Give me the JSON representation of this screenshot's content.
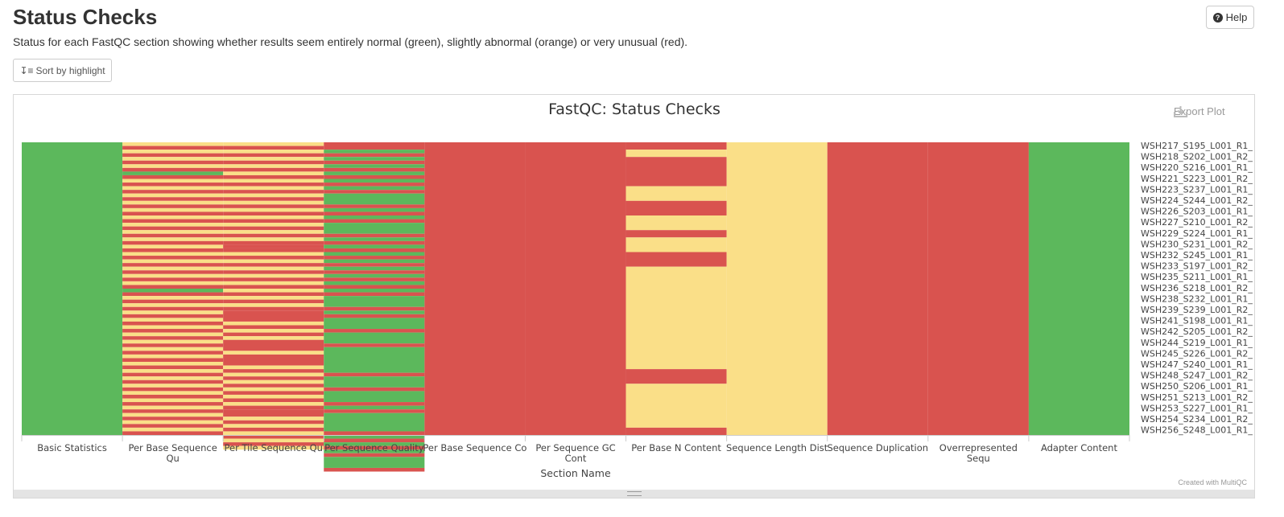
{
  "page": {
    "title": "Status Checks",
    "description": "Status for each FastQC section showing whether results seem entirely normal (green), slightly abnormal (orange) or very unusual (red).",
    "help_label": "Help",
    "help_icon": "question-circle-icon",
    "sort_label": "Sort by highlight",
    "sort_icon": "sort-amount-icon",
    "export_label": "Export Plot",
    "export_icon": "download-icon",
    "credit": "Created with MultiQC"
  },
  "chart_data": {
    "type": "heatmap",
    "title": "FastQC: Status Checks",
    "xlabel": "Section Name",
    "ylabel": "",
    "legend": "none",
    "status_colors": {
      "pass": "#5cb85c",
      "warn": "#fadf88",
      "fail": "#d9534f"
    },
    "value_scale": {
      "pass": 1,
      "warn": 0.5,
      "fail": 0.25
    },
    "x_categories": [
      [
        "Basic Statistics"
      ],
      [
        "Per Base Sequence",
        "Qu"
      ],
      [
        "Per Tile Sequence Qu"
      ],
      [
        "Per Sequence Quality"
      ],
      [
        "Per Base Sequence Co"
      ],
      [
        "Per Sequence GC",
        "Cont"
      ],
      [
        "Per Base N Content"
      ],
      [
        "Sequence Length Dist"
      ],
      [
        "Sequence Duplication"
      ],
      [
        "Overrepresented",
        "Sequ"
      ],
      [
        "Adapter Content"
      ]
    ],
    "visible_y_labels": [
      "WSH217_S195_L001_R1_",
      "WSH218_S202_L001_R2_",
      "WSH220_S216_L001_R1_",
      "WSH221_S223_L001_R2_",
      "WSH223_S237_L001_R1_",
      "WSH224_S244_L001_R2_",
      "WSH226_S203_L001_R1_",
      "WSH227_S210_L001_R2_",
      "WSH229_S224_L001_R1_",
      "WSH230_S231_L001_R2_",
      "WSH232_S245_L001_R1_",
      "WSH233_S197_L001_R2_",
      "WSH235_S211_L001_R1_",
      "WSH236_S218_L001_R2_",
      "WSH238_S232_L001_R1_",
      "WSH239_S239_L001_R2_",
      "WSH241_S198_L001_R1_",
      "WSH242_S205_L001_R2_",
      "WSH244_S219_L001_R1_",
      "WSH245_S226_L001_R2_",
      "WSH247_S240_L001_R1_",
      "WSH248_S247_L001_R2_",
      "WSH250_S206_L001_R1_",
      "WSH251_S213_L001_R2_",
      "WSH253_S227_L001_R1_",
      "WSH254_S234_L001_R2_",
      "WSH256_S248_L001_R1_"
    ],
    "sample_count": 80,
    "columns": [
      {
        "runs": [
          [
            "pass",
            80
          ]
        ]
      },
      {
        "runs": [
          [
            "warn",
            1
          ],
          [
            "fail",
            1
          ],
          [
            "warn",
            1
          ],
          [
            "fail",
            1
          ],
          [
            "warn",
            1
          ],
          [
            "fail",
            1
          ],
          [
            "warn",
            1
          ],
          [
            "fail",
            1
          ],
          [
            "pass",
            1
          ],
          [
            "fail",
            1
          ],
          [
            "warn",
            1
          ],
          [
            "fail",
            1
          ],
          [
            "warn",
            1
          ],
          [
            "fail",
            1
          ],
          [
            "warn",
            1
          ],
          [
            "fail",
            1
          ],
          [
            "warn",
            1
          ],
          [
            "fail",
            1
          ],
          [
            "warn",
            1
          ],
          [
            "fail",
            1
          ],
          [
            "warn",
            1
          ],
          [
            "fail",
            1
          ],
          [
            "warn",
            1
          ],
          [
            "fail",
            1
          ],
          [
            "warn",
            1
          ],
          [
            "fail",
            1
          ],
          [
            "warn",
            1
          ],
          [
            "fail",
            1
          ],
          [
            "warn",
            1
          ],
          [
            "fail",
            1
          ],
          [
            "warn",
            1
          ],
          [
            "fail",
            1
          ],
          [
            "warn",
            1
          ],
          [
            "fail",
            1
          ],
          [
            "warn",
            1
          ],
          [
            "fail",
            1
          ],
          [
            "warn",
            1
          ],
          [
            "fail",
            1
          ],
          [
            "warn",
            1
          ],
          [
            "fail",
            1
          ],
          [
            "pass",
            1
          ],
          [
            "fail",
            1
          ],
          [
            "warn",
            1
          ],
          [
            "fail",
            1
          ],
          [
            "warn",
            1
          ],
          [
            "fail",
            1
          ],
          [
            "warn",
            1
          ],
          [
            "fail",
            1
          ],
          [
            "warn",
            1
          ],
          [
            "fail",
            1
          ],
          [
            "warn",
            1
          ],
          [
            "fail",
            1
          ],
          [
            "warn",
            1
          ],
          [
            "fail",
            1
          ],
          [
            "warn",
            1
          ],
          [
            "fail",
            1
          ],
          [
            "warn",
            1
          ],
          [
            "fail",
            1
          ],
          [
            "warn",
            1
          ],
          [
            "fail",
            1
          ],
          [
            "warn",
            1
          ],
          [
            "fail",
            1
          ],
          [
            "warn",
            1
          ],
          [
            "fail",
            1
          ],
          [
            "warn",
            1
          ],
          [
            "fail",
            1
          ],
          [
            "warn",
            1
          ],
          [
            "fail",
            1
          ],
          [
            "warn",
            1
          ],
          [
            "fail",
            1
          ],
          [
            "warn",
            1
          ],
          [
            "fail",
            1
          ],
          [
            "warn",
            1
          ],
          [
            "fail",
            1
          ],
          [
            "warn",
            1
          ],
          [
            "fail",
            1
          ],
          [
            "warn",
            1
          ],
          [
            "fail",
            1
          ],
          [
            "warn",
            1
          ],
          [
            "fail",
            1
          ]
        ]
      },
      {
        "runs": [
          [
            "warn",
            1
          ],
          [
            "fail",
            1
          ],
          [
            "warn",
            1
          ],
          [
            "fail",
            1
          ],
          [
            "warn",
            1
          ],
          [
            "fail",
            1
          ],
          [
            "warn",
            1
          ],
          [
            "fail",
            1
          ],
          [
            "warn",
            1
          ],
          [
            "fail",
            1
          ],
          [
            "warn",
            1
          ],
          [
            "fail",
            1
          ],
          [
            "warn",
            1
          ],
          [
            "fail",
            1
          ],
          [
            "warn",
            1
          ],
          [
            "fail",
            1
          ],
          [
            "warn",
            1
          ],
          [
            "fail",
            1
          ],
          [
            "warn",
            1
          ],
          [
            "fail",
            1
          ],
          [
            "warn",
            1
          ],
          [
            "fail",
            1
          ],
          [
            "warn",
            1
          ],
          [
            "fail",
            1
          ],
          [
            "warn",
            1
          ],
          [
            "fail",
            1
          ],
          [
            "warn",
            1
          ],
          [
            "fail",
            1
          ],
          [
            "fail",
            1
          ],
          [
            "fail",
            1
          ],
          [
            "warn",
            1
          ],
          [
            "fail",
            1
          ],
          [
            "warn",
            1
          ],
          [
            "fail",
            1
          ],
          [
            "warn",
            1
          ],
          [
            "fail",
            1
          ],
          [
            "warn",
            1
          ],
          [
            "fail",
            1
          ],
          [
            "warn",
            1
          ],
          [
            "fail",
            1
          ],
          [
            "warn",
            1
          ],
          [
            "fail",
            1
          ],
          [
            "warn",
            1
          ],
          [
            "fail",
            1
          ],
          [
            "warn",
            1
          ],
          [
            "fail",
            1
          ],
          [
            "fail",
            3
          ],
          [
            "warn",
            1
          ],
          [
            "fail",
            1
          ],
          [
            "warn",
            1
          ],
          [
            "fail",
            1
          ],
          [
            "warn",
            1
          ],
          [
            "fail",
            3
          ],
          [
            "warn",
            1
          ],
          [
            "fail",
            3
          ],
          [
            "warn",
            1
          ],
          [
            "fail",
            1
          ],
          [
            "warn",
            1
          ],
          [
            "fail",
            1
          ],
          [
            "warn",
            1
          ],
          [
            "fail",
            1
          ],
          [
            "warn",
            1
          ],
          [
            "fail",
            1
          ],
          [
            "warn",
            1
          ],
          [
            "fail",
            1
          ],
          [
            "warn",
            1
          ],
          [
            "fail",
            1
          ],
          [
            "fail",
            2
          ],
          [
            "warn",
            1
          ],
          [
            "fail",
            1
          ],
          [
            "warn",
            1
          ],
          [
            "fail",
            1
          ],
          [
            "warn",
            1
          ],
          [
            "fail",
            1
          ],
          [
            "warn",
            1
          ],
          [
            "fail",
            1
          ],
          [
            "warn",
            1
          ]
        ]
      },
      {
        "runs": [
          [
            "fail",
            2
          ],
          [
            "pass",
            1
          ],
          [
            "fail",
            1
          ],
          [
            "pass",
            1
          ],
          [
            "fail",
            1
          ],
          [
            "pass",
            1
          ],
          [
            "fail",
            1
          ],
          [
            "pass",
            1
          ],
          [
            "fail",
            1
          ],
          [
            "pass",
            1
          ],
          [
            "fail",
            1
          ],
          [
            "pass",
            1
          ],
          [
            "fail",
            1
          ],
          [
            "pass",
            3
          ],
          [
            "fail",
            1
          ],
          [
            "pass",
            1
          ],
          [
            "fail",
            1
          ],
          [
            "pass",
            1
          ],
          [
            "fail",
            1
          ],
          [
            "pass",
            3
          ],
          [
            "fail",
            1
          ],
          [
            "pass",
            1
          ],
          [
            "fail",
            1
          ],
          [
            "pass",
            1
          ],
          [
            "fail",
            1
          ],
          [
            "pass",
            1
          ],
          [
            "fail",
            1
          ],
          [
            "pass",
            1
          ],
          [
            "fail",
            1
          ],
          [
            "pass",
            1
          ],
          [
            "fail",
            1
          ],
          [
            "pass",
            1
          ],
          [
            "fail",
            1
          ],
          [
            "pass",
            1
          ],
          [
            "fail",
            1
          ],
          [
            "pass",
            1
          ],
          [
            "fail",
            1
          ],
          [
            "pass",
            3
          ],
          [
            "fail",
            1
          ],
          [
            "pass",
            1
          ],
          [
            "fail",
            1
          ],
          [
            "pass",
            3
          ],
          [
            "fail",
            1
          ],
          [
            "pass",
            3
          ],
          [
            "fail",
            1
          ],
          [
            "pass",
            7
          ],
          [
            "fail",
            1
          ],
          [
            "pass",
            3
          ],
          [
            "fail",
            1
          ],
          [
            "pass",
            3
          ],
          [
            "fail",
            1
          ],
          [
            "pass",
            1
          ],
          [
            "fail",
            1
          ],
          [
            "pass",
            5
          ],
          [
            "fail",
            1
          ],
          [
            "pass",
            1
          ],
          [
            "fail",
            1
          ],
          [
            "pass",
            1
          ],
          [
            "fail",
            1
          ],
          [
            "pass",
            1
          ],
          [
            "fail",
            1
          ],
          [
            "pass",
            3
          ],
          [
            "fail",
            1
          ]
        ]
      },
      {
        "runs": [
          [
            "fail",
            80
          ]
        ]
      },
      {
        "runs": [
          [
            "fail",
            80
          ]
        ]
      },
      {
        "runs": [
          [
            "fail",
            2
          ],
          [
            "warn",
            2
          ],
          [
            "fail",
            8
          ],
          [
            "warn",
            4
          ],
          [
            "fail",
            4
          ],
          [
            "warn",
            4
          ],
          [
            "fail",
            2
          ],
          [
            "warn",
            4
          ],
          [
            "fail",
            4
          ],
          [
            "warn",
            28
          ],
          [
            "fail",
            4
          ],
          [
            "warn",
            12
          ],
          [
            "fail",
            2
          ]
        ]
      },
      {
        "runs": [
          [
            "warn",
            80
          ]
        ]
      },
      {
        "runs": [
          [
            "fail",
            80
          ]
        ]
      },
      {
        "runs": [
          [
            "fail",
            80
          ]
        ]
      },
      {
        "runs": [
          [
            "pass",
            80
          ]
        ]
      }
    ]
  }
}
